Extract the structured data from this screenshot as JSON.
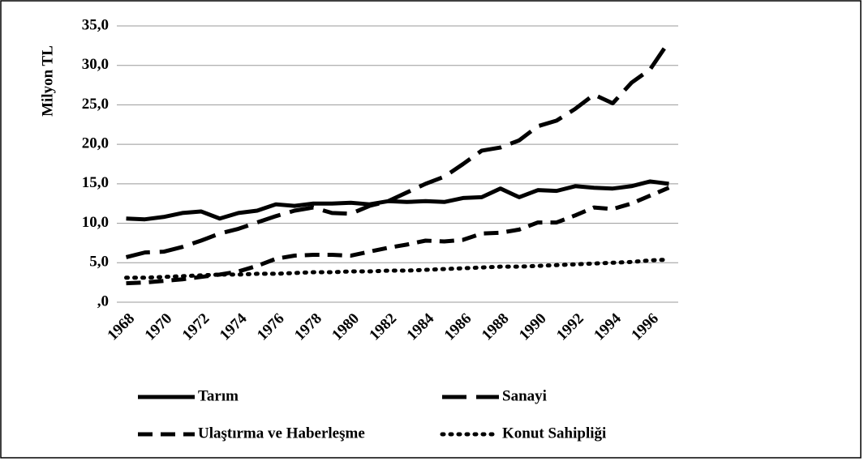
{
  "chart_data": {
    "type": "line",
    "y_label": "Milyon TL",
    "categories": [
      "1968",
      null,
      "1970",
      null,
      "1972",
      null,
      "1974",
      null,
      "1976",
      null,
      "1978",
      null,
      "1980",
      null,
      "1982",
      null,
      "1984",
      null,
      "1986",
      null,
      "1988",
      null,
      "1990",
      null,
      "1992",
      null,
      "1994",
      null,
      "1996",
      null
    ],
    "series": [
      {
        "name": "Tarım",
        "color": "#000000",
        "line_style": "solid",
        "values": [
          10.6,
          10.5,
          10.8,
          11.3,
          11.5,
          10.6,
          11.3,
          11.6,
          12.4,
          12.2,
          12.5,
          12.5,
          12.6,
          12.4,
          12.8,
          12.7,
          12.8,
          12.7,
          13.2,
          13.3,
          14.4,
          13.3,
          14.2,
          14.1,
          14.7,
          14.5,
          14.4,
          14.7,
          15.3,
          15.0
        ]
      },
      {
        "name": "Sanayi",
        "color": "#000000",
        "line_style": "long-dash",
        "values": [
          5.7,
          6.3,
          6.4,
          7.0,
          7.8,
          8.7,
          9.3,
          10.1,
          10.9,
          11.6,
          12.0,
          11.3,
          11.2,
          12.2,
          12.8,
          13.9,
          15.0,
          15.9,
          17.5,
          19.2,
          19.6,
          20.5,
          22.3,
          23.0,
          24.5,
          26.3,
          25.2,
          27.8,
          29.5,
          33.0
        ]
      },
      {
        "name": "Ulaştırma ve Haberleşme",
        "color": "#000000",
        "line_style": "dash",
        "values": [
          2.4,
          2.5,
          2.7,
          2.9,
          3.2,
          3.5,
          3.9,
          4.6,
          5.5,
          5.9,
          6.0,
          6.0,
          5.9,
          6.4,
          6.9,
          7.3,
          7.8,
          7.7,
          7.9,
          8.7,
          8.8,
          9.2,
          10.1,
          10.1,
          11.0,
          12.0,
          11.8,
          12.5,
          13.5,
          14.5
        ]
      },
      {
        "name": "Konut Sahipliği",
        "color": "#000000",
        "line_style": "dot",
        "values": [
          3.1,
          3.1,
          3.2,
          3.3,
          3.4,
          3.5,
          3.5,
          3.6,
          3.6,
          3.7,
          3.8,
          3.8,
          3.9,
          3.9,
          4.0,
          4.0,
          4.1,
          4.2,
          4.3,
          4.4,
          4.5,
          4.5,
          4.6,
          4.7,
          4.8,
          4.9,
          5.0,
          5.1,
          5.3,
          5.4
        ]
      }
    ],
    "ylim": [
      0,
      35
    ],
    "yticks": [
      {
        "value": 0,
        "label": ",0"
      },
      {
        "value": 5,
        "label": "5,0"
      },
      {
        "value": 10,
        "label": "10,0"
      },
      {
        "value": 15,
        "label": "15,0"
      },
      {
        "value": 20,
        "label": "20,0"
      },
      {
        "value": 25,
        "label": "25,0"
      },
      {
        "value": 30,
        "label": "30,0"
      },
      {
        "value": 35,
        "label": "35,0"
      }
    ],
    "grid": true,
    "legend": "bottom"
  }
}
